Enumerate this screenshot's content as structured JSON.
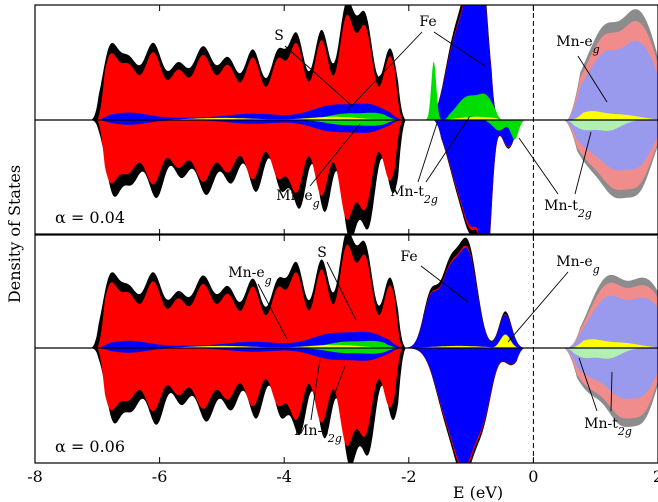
{
  "chart_data": {
    "type": "area",
    "xlabel": "E (eV)",
    "ylabel": "Density of States",
    "xlim": [
      -8,
      2
    ],
    "x_ticks": [
      -8,
      -6,
      -4,
      -2,
      0,
      2
    ],
    "x_tick_labels": [
      "-8",
      "-6",
      "-4",
      "-2",
      "0",
      "2"
    ],
    "fermi_level": 0,
    "colors": {
      "total": "#000000",
      "S": "#ff0000",
      "Fe": "#0000ff",
      "Mn_t2g": "#00dd00",
      "Mn_eg": "#ffff00",
      "unocc_total": "#8c8c8c",
      "unocc_S": "#f08c8c",
      "unocc_Fe": "#9999ee",
      "unocc_t2g": "#b2f0b2"
    },
    "panels": [
      {
        "label": "α = 0.04",
        "annotations": {
          "S": "S",
          "Fe": "Fe",
          "Mn_eg_top": "Mn-e",
          "Mn_eg_bottom": "Mn-e",
          "Mn_t2g_left": "Mn-t",
          "Mn_t2g_right": "Mn-t",
          "sub_eg": "g",
          "sub_t2g": "2g"
        }
      },
      {
        "label": "α = 0.06",
        "annotations": {
          "Mn_eg_left": "Mn-e",
          "S": "S",
          "Fe": "Fe",
          "Mn_eg_right": "Mn-e",
          "Mn_t2g_left": "Mn-t",
          "Mn_t2g_right": "Mn-t",
          "sub_eg": "g",
          "sub_t2g": "2g"
        }
      }
    ]
  }
}
